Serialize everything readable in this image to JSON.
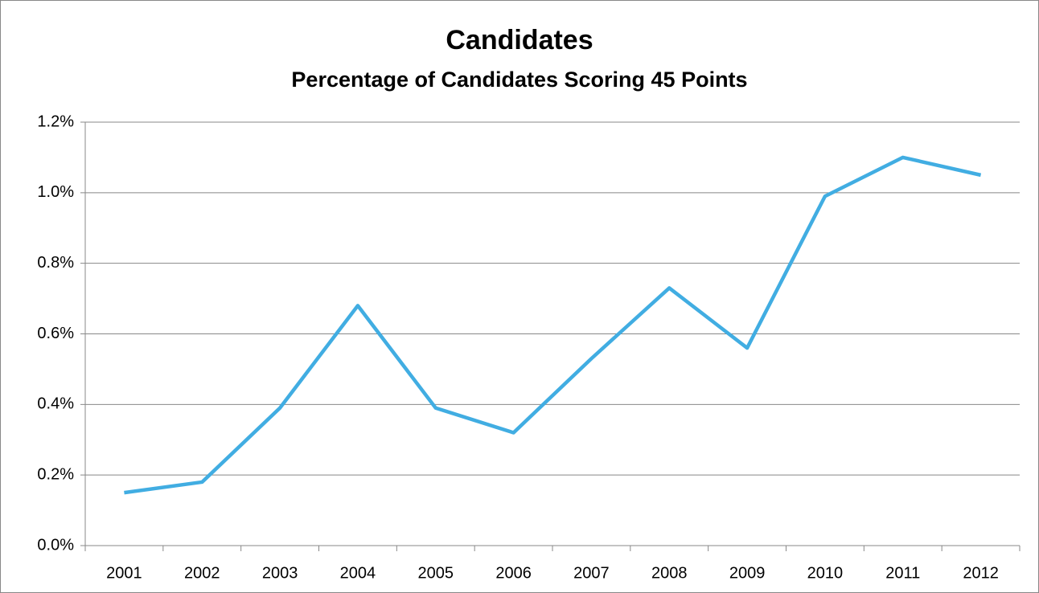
{
  "chart_data": {
    "type": "line",
    "title": "Candidates",
    "subtitle": "Percentage of Candidates Scoring 45 Points",
    "categories": [
      "2001",
      "2002",
      "2003",
      "2004",
      "2005",
      "2006",
      "2007",
      "2008",
      "2009",
      "2010",
      "2011",
      "2012"
    ],
    "values": [
      0.15,
      0.18,
      0.39,
      0.68,
      0.39,
      0.32,
      0.53,
      0.73,
      0.56,
      0.99,
      1.1,
      1.05
    ],
    "color": "#41ade2",
    "ylim": [
      0,
      1.2
    ],
    "yticks": [
      {
        "value": 0,
        "label": "0.0%"
      },
      {
        "value": 0.2,
        "label": "0.2%"
      },
      {
        "value": 0.4,
        "label": "0.4%"
      },
      {
        "value": 0.6,
        "label": "0.6%"
      },
      {
        "value": 0.8,
        "label": "0.8%"
      },
      {
        "value": 1.0,
        "label": "1.0%"
      },
      {
        "value": 1.2,
        "label": "1.2%"
      }
    ],
    "grid": true
  }
}
